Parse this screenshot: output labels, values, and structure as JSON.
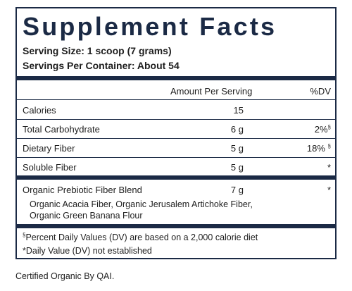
{
  "title": "Supplement Facts",
  "serving_size": "Serving Size: 1 scoop (7 grams)",
  "servings_per_container": "Servings Per Container: About 54",
  "header": {
    "amount": "Amount Per Serving",
    "dv": "%DV"
  },
  "rows": [
    {
      "name": "Calories",
      "amount": "15"
    },
    {
      "name": "Total Carbohydrate",
      "amount": "6 g",
      "dv": "2%",
      "dv_note": "§"
    },
    {
      "name": "Dietary Fiber",
      "amount": "5 g",
      "dv": "18%",
      "dv_note": "§"
    },
    {
      "name": "Soluble Fiber",
      "amount": "5 g",
      "dv": "*"
    },
    {
      "name": "Organic Prebiotic Fiber Blend",
      "amount": "7 g",
      "dv": "*"
    }
  ],
  "blend_ingredients": [
    "Organic Acacia Fiber, Organic Jerusalem Artichoke Fiber,",
    "Organic Green Banana Flour"
  ],
  "footnotes": [
    {
      "mark": "§",
      "text": "Percent Daily Values (DV) are based on a 2,000 calorie diet"
    },
    {
      "text": "*Daily Value (DV) not established"
    }
  ],
  "certification": "Certified Organic By QAI."
}
